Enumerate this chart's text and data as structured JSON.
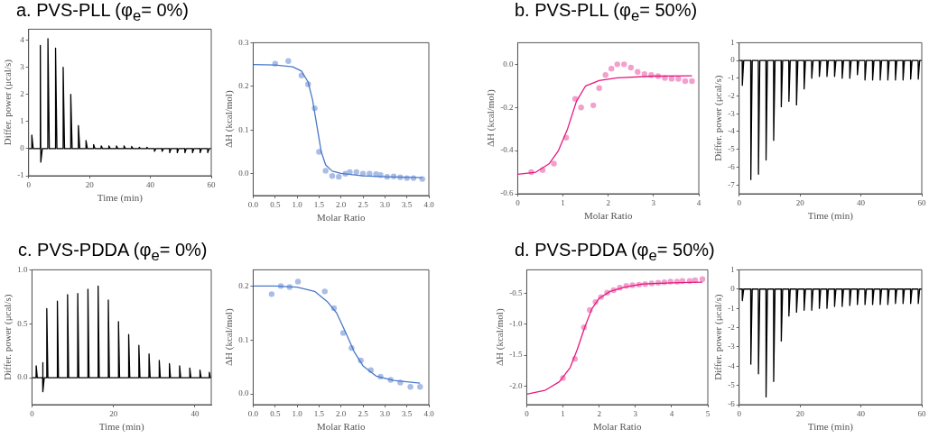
{
  "chart_data": [
    {
      "type": "line",
      "title": "a. PVS-PLL (φ$_{e}$= 0%)",
      "xlabel": "Time (min)",
      "ylabel": "Differ. power (μcal/s)",
      "xlim": [
        0,
        60
      ],
      "xticks": [
        0,
        20,
        40,
        60
      ],
      "ylim": [
        -1,
        4.4
      ],
      "yticks": [
        -1,
        0,
        1,
        2,
        3,
        4
      ],
      "marker": "none",
      "series": [
        {
          "color": "#000000",
          "x": [
            0,
            1,
            1.05,
            1.5,
            3.8,
            3.85,
            4.0,
            4.5,
            6.3,
            6.35,
            6.8,
            8.8,
            8.85,
            9.3,
            11.3,
            11.35,
            11.8,
            13.8,
            13.85,
            14.3,
            16.3,
            16.35,
            16.8,
            18.8,
            18.85,
            19.3,
            21.3,
            21.35,
            21.8,
            23.8,
            23.85,
            24.3,
            26.3,
            26.35,
            26.8,
            28.8,
            28.85,
            29.3,
            31.3,
            31.35,
            31.8,
            33.8,
            33.85,
            34.3,
            36.3,
            36.35,
            36.8,
            38.8,
            38.85,
            39.3,
            41.3,
            41.35,
            41.8,
            43.8,
            43.85,
            44.3,
            46.3,
            46.35,
            46.8,
            48.8,
            48.85,
            49.3,
            51.3,
            51.35,
            51.8,
            53.8,
            53.85,
            54.3,
            56.3,
            56.35,
            56.8,
            58.8,
            58.85,
            59.3,
            60
          ],
          "values": [
            0,
            0,
            0.5,
            0,
            0,
            3.8,
            -0.5,
            0,
            0,
            4.05,
            0,
            0,
            3.7,
            0,
            0,
            3.0,
            0,
            0,
            2.0,
            0,
            0,
            0.85,
            0,
            0,
            0.3,
            0,
            0,
            0.15,
            0,
            0,
            0.1,
            0,
            0,
            0.1,
            0,
            0,
            0.1,
            0,
            0,
            0.1,
            0,
            0,
            0.08,
            0,
            0,
            0.05,
            0,
            0,
            0.05,
            0,
            0,
            -0.1,
            0,
            0,
            -0.1,
            0,
            0,
            -0.15,
            0,
            0,
            -0.15,
            0,
            0,
            -0.15,
            0,
            0,
            -0.15,
            0,
            0,
            -0.15,
            0,
            0,
            -0.15,
            0,
            0
          ]
        }
      ]
    },
    {
      "type": "scatter",
      "xlabel": "Molar Ratio",
      "ylabel": "ΔH (kcal/mol)",
      "xlim": [
        0,
        4
      ],
      "xticks": [
        {
          "value": 0,
          "label": "0.0"
        },
        0.5,
        {
          "value": 1,
          "label": "1.0"
        },
        1.5,
        {
          "value": 2,
          "label": "2.0"
        },
        2.5,
        {
          "value": 3,
          "label": "3.0"
        },
        3.5,
        {
          "value": 4,
          "label": "4.0"
        }
      ],
      "ylim": [
        -0.05,
        0.3
      ],
      "yticks": [
        {
          "value": 0,
          "label": "0.0"
        },
        0.1,
        0.2,
        0.3
      ],
      "series": [
        {
          "type": "scatter",
          "marker": "circle",
          "color": "#a9bde6",
          "x": [
            0.5,
            0.8,
            1.1,
            1.25,
            1.4,
            1.5,
            1.65,
            1.8,
            1.95,
            2.1,
            2.2,
            2.35,
            2.5,
            2.65,
            2.8,
            2.9,
            3.05,
            3.2,
            3.35,
            3.5,
            3.65,
            3.8,
            3.85
          ],
          "values": [
            0.252,
            0.258,
            0.225,
            0.205,
            0.15,
            0.05,
            0.007,
            -0.005,
            -0.007,
            0,
            0.004,
            0.004,
            0,
            0,
            -0.001,
            -0.003,
            -0.007,
            -0.006,
            -0.008,
            -0.01,
            -0.01,
            null,
            -0.012
          ]
        },
        {
          "type": "line",
          "marker": "none",
          "color": "#4a78c9",
          "x": [
            0,
            0.5,
            0.9,
            1.1,
            1.25,
            1.35,
            1.45,
            1.55,
            1.65,
            1.8,
            2,
            2.5,
            3,
            3.85
          ],
          "values": [
            0.25,
            0.249,
            0.245,
            0.235,
            0.21,
            0.17,
            0.11,
            0.05,
            0.02,
            0.006,
            0.001,
            -0.005,
            -0.007,
            -0.009
          ]
        }
      ]
    },
    {
      "type": "scatter",
      "title": "b. PVS-PLL (φ$_{e}$= 50%)",
      "xlabel": "Molar Ratio",
      "ylabel": "ΔH (kcal/mol)",
      "xlim": [
        0,
        4
      ],
      "xticks": [
        0,
        1,
        2,
        3,
        4
      ],
      "ylim": [
        -0.6,
        0.1
      ],
      "yticks": [
        -0.6,
        -0.4,
        -0.2,
        {
          "value": 0,
          "label": "0.0"
        }
      ],
      "series": [
        {
          "type": "scatter",
          "marker": "circle",
          "color": "#f3a0cd",
          "x": [
            0.3,
            0.55,
            0.8,
            1.07,
            1.27,
            1.4,
            1.67,
            1.8,
            1.94,
            2.07,
            2.2,
            2.35,
            2.5,
            2.65,
            2.8,
            2.95,
            3.1,
            3.25,
            3.4,
            3.55,
            3.7,
            3.82,
            3.85
          ],
          "values": [
            -0.5,
            -0.49,
            -0.46,
            -0.34,
            -0.16,
            -0.2,
            -0.19,
            -0.11,
            -0.05,
            -0.02,
            0,
            0,
            -0.015,
            -0.035,
            -0.045,
            -0.05,
            -0.055,
            -0.063,
            -0.067,
            -0.068,
            -0.078,
            null,
            -0.078
          ]
        },
        {
          "type": "line",
          "marker": "none",
          "color": "#e5197f",
          "x": [
            0,
            0.4,
            0.7,
            0.9,
            1.1,
            1.3,
            1.5,
            1.8,
            2.2,
            3,
            3.85
          ],
          "values": [
            -0.51,
            -0.5,
            -0.46,
            -0.4,
            -0.3,
            -0.17,
            -0.1,
            -0.075,
            -0.063,
            -0.055,
            -0.053
          ]
        }
      ]
    },
    {
      "type": "line",
      "xlabel": "Time (min)",
      "ylabel": "Differ. power (μcal/s)",
      "xlim": [
        0,
        60
      ],
      "xticks": [
        0,
        20,
        40,
        60
      ],
      "ylim": [
        -7.5,
        1
      ],
      "yticks": [
        -7,
        -6,
        -5,
        -4,
        -3,
        -2,
        -1,
        0,
        1
      ],
      "marker": "none",
      "series": [
        {
          "color": "#000000",
          "x": [
            0,
            1,
            1.05,
            1.5,
            3.8,
            3.85,
            4.3,
            6.3,
            6.35,
            6.8,
            8.8,
            8.85,
            9.3,
            11.3,
            11.35,
            11.8,
            13.8,
            13.85,
            14.3,
            16.3,
            16.35,
            16.8,
            18.8,
            18.85,
            19.3,
            21.3,
            21.35,
            21.8,
            23.8,
            23.85,
            24.3,
            26.3,
            26.35,
            26.8,
            28.8,
            28.85,
            29.3,
            31.3,
            31.35,
            31.8,
            33.8,
            33.85,
            34.3,
            36.3,
            36.35,
            36.8,
            38.8,
            38.85,
            39.3,
            41.3,
            41.35,
            41.8,
            43.8,
            43.85,
            44.3,
            46.3,
            46.35,
            46.8,
            48.8,
            48.85,
            49.3,
            51.3,
            51.35,
            51.8,
            53.8,
            53.85,
            54.3,
            56.3,
            56.35,
            56.8,
            58.8,
            58.85,
            59.3,
            60
          ],
          "values": [
            0,
            0,
            -1.4,
            0,
            0,
            -6.7,
            0,
            0,
            -6.4,
            0,
            0,
            -5.6,
            0,
            0,
            -4.5,
            0,
            0,
            -2.6,
            0,
            0,
            -2.3,
            0,
            0,
            -2.5,
            0,
            0,
            -1.6,
            0,
            0,
            -1.0,
            0,
            0,
            -0.9,
            0,
            0,
            -0.9,
            0,
            0,
            -0.9,
            0,
            0,
            -1.0,
            0,
            0,
            -1.0,
            0,
            0,
            -0.8,
            0,
            0,
            -1.1,
            0,
            0,
            -1.1,
            0,
            0,
            -1.1,
            0,
            0,
            -1.1,
            0,
            0,
            -1.1,
            0,
            0,
            -1.1,
            0,
            0,
            -1.05,
            0,
            0,
            -1.05,
            0,
            0
          ]
        }
      ]
    },
    {
      "type": "line",
      "title": "c. PVS-PDDA (φ$_{e}$= 0%)",
      "xlabel": "Time (min)",
      "ylabel": "Differ. power (μcal/s)",
      "xlim": [
        0,
        44
      ],
      "xticks": [
        0,
        20,
        40
      ],
      "ylim": [
        -0.25,
        1
      ],
      "yticks": [
        {
          "value": 0,
          "label": "0.0"
        },
        0.5,
        {
          "value": 1,
          "label": "1.0"
        }
      ],
      "marker": "none",
      "series": [
        {
          "color": "#000000",
          "x": [
            0,
            1,
            1.03,
            1.3,
            2.6,
            2.63,
            2.7,
            3.0,
            3.6,
            3.63,
            3.9,
            6.2,
            6.23,
            6.5,
            8.7,
            8.73,
            9.0,
            11.2,
            11.23,
            11.5,
            13.7,
            13.73,
            14.0,
            16.2,
            16.23,
            16.5,
            18.7,
            18.73,
            19.0,
            21.2,
            21.23,
            21.5,
            23.7,
            23.73,
            24.0,
            26.2,
            26.23,
            26.5,
            28.7,
            28.73,
            29.0,
            31.2,
            31.23,
            31.5,
            33.7,
            33.73,
            34.0,
            36.2,
            36.23,
            36.5,
            38.7,
            38.73,
            39.0,
            41.2,
            41.23,
            41.5,
            43.5,
            43.53,
            43.8,
            44
          ],
          "values": [
            0,
            0,
            0.11,
            0,
            0,
            0.14,
            -0.13,
            0,
            0,
            0.64,
            0,
            0,
            0.71,
            0,
            0,
            0.77,
            0,
            0,
            0.78,
            0,
            0,
            0.82,
            0,
            0,
            0.85,
            0,
            0,
            0.72,
            0,
            0,
            0.52,
            0,
            0,
            0.4,
            0,
            0,
            0.3,
            0,
            0,
            0.22,
            0,
            0,
            0.16,
            0,
            0,
            0.13,
            0,
            0,
            0.11,
            0,
            0,
            0.09,
            0,
            0,
            0.07,
            0,
            0,
            0.05,
            0,
            0
          ]
        }
      ]
    },
    {
      "type": "scatter",
      "xlabel": "Molar Ratio",
      "ylabel": "ΔH (kcal/mol)",
      "xlim": [
        0,
        4
      ],
      "xticks": [
        {
          "value": 0,
          "label": "0.0"
        },
        0.5,
        {
          "value": 1,
          "label": "1.0"
        },
        1.5,
        {
          "value": 2,
          "label": "2.0"
        },
        2.5,
        {
          "value": 3,
          "label": "3.0"
        },
        3.5,
        {
          "value": 4,
          "label": "4.0"
        }
      ],
      "ylim": [
        -0.02,
        0.23
      ],
      "yticks": [
        {
          "value": 0,
          "label": "0.0"
        },
        0.1,
        0.2
      ],
      "series": [
        {
          "type": "scatter",
          "marker": "circle",
          "color": "#a9bde6",
          "x": [
            0.42,
            0.63,
            0.83,
            1.02,
            1.63,
            1.84,
            2.05,
            2.24,
            2.45,
            2.68,
            2.9,
            3.13,
            3.35,
            3.58,
            3.8
          ],
          "values": [
            0.185,
            0.2,
            0.198,
            0.208,
            0.19,
            0.159,
            0.113,
            0.085,
            0.062,
            0.044,
            0.032,
            0.026,
            0.021,
            0.013,
            0.013
          ]
        },
        {
          "type": "line",
          "marker": "none",
          "color": "#4a78c9",
          "x": [
            0,
            0.5,
            1,
            1.4,
            1.7,
            1.9,
            2.1,
            2.3,
            2.5,
            2.8,
            3.2,
            3.8
          ],
          "values": [
            0.2,
            0.2,
            0.198,
            0.19,
            0.17,
            0.15,
            0.115,
            0.078,
            0.052,
            0.033,
            0.025,
            0.02
          ]
        }
      ]
    },
    {
      "type": "scatter",
      "title": "d. PVS-PDDA (φ$_{e}$= 50%)",
      "xlabel": "Molar Ratio",
      "ylabel": "ΔH (kcal/mol)",
      "xlim": [
        0,
        5
      ],
      "xticks": [
        0,
        1,
        2,
        3,
        4,
        5
      ],
      "ylim": [
        -2.3,
        -0.12
      ],
      "yticks": [
        {
          "value": -2,
          "label": "-2.0"
        },
        -1.5,
        {
          "value": -1,
          "label": "-1.0"
        },
        -0.5
      ],
      "series": [
        {
          "type": "scatter",
          "marker": "circle",
          "color": "#f3a0cd",
          "x": [
            1.0,
            1.33,
            1.58,
            1.74,
            1.9,
            2.05,
            2.22,
            2.4,
            2.57,
            2.75,
            2.92,
            3.1,
            3.27,
            3.45,
            3.63,
            3.8,
            3.97,
            4.15,
            4.3,
            4.5,
            4.65,
            4.8,
            4.85
          ],
          "values": [
            -1.87,
            -1.56,
            -1.05,
            -0.77,
            -0.64,
            -0.56,
            -0.49,
            -0.45,
            -0.41,
            -0.38,
            -0.37,
            -0.36,
            -0.35,
            -0.34,
            -0.33,
            -0.32,
            -0.31,
            -0.31,
            -0.3,
            -0.3,
            -0.29,
            null,
            -0.27
          ]
        },
        {
          "type": "line",
          "marker": "none",
          "color": "#e5197f",
          "x": [
            0,
            0.5,
            0.9,
            1.2,
            1.4,
            1.6,
            1.8,
            2,
            2.3,
            2.7,
            3.2,
            4,
            4.85
          ],
          "values": [
            -2.13,
            -2.07,
            -1.93,
            -1.7,
            -1.4,
            -1.05,
            -0.75,
            -0.58,
            -0.47,
            -0.4,
            -0.35,
            -0.33,
            -0.32
          ]
        }
      ]
    },
    {
      "type": "line",
      "xlabel": "Time (min)",
      "ylabel": "Differ. power (μcal/s)",
      "xlim": [
        0,
        60
      ],
      "xticks": [
        0,
        20,
        40,
        60
      ],
      "ylim": [
        -6,
        1
      ],
      "yticks": [
        -6,
        -5,
        -4,
        -3,
        -2,
        -1,
        0,
        1
      ],
      "marker": "none",
      "series": [
        {
          "color": "#000000",
          "x": [
            0,
            1,
            1.05,
            1.5,
            3.8,
            3.85,
            4.3,
            6.3,
            6.35,
            6.8,
            8.8,
            8.85,
            9.3,
            11.3,
            11.35,
            11.8,
            13.8,
            13.85,
            14.3,
            16.3,
            16.35,
            16.8,
            18.8,
            18.85,
            19.3,
            21.3,
            21.35,
            21.8,
            23.8,
            23.85,
            24.3,
            26.3,
            26.35,
            26.8,
            28.8,
            28.85,
            29.3,
            31.3,
            31.35,
            31.8,
            33.8,
            33.85,
            34.3,
            36.3,
            36.35,
            36.8,
            38.8,
            38.85,
            39.3,
            41.3,
            41.35,
            41.8,
            43.8,
            43.85,
            44.3,
            46.3,
            46.35,
            46.8,
            48.8,
            48.85,
            49.3,
            51.3,
            51.35,
            51.8,
            53.8,
            53.85,
            54.3,
            56.3,
            56.35,
            56.8,
            58.8,
            58.85,
            59.3,
            60
          ],
          "values": [
            0,
            0,
            -0.6,
            0,
            0,
            -3.9,
            0,
            0,
            -4.4,
            0,
            0,
            -5.6,
            0,
            0,
            -4.8,
            0,
            0,
            -2.7,
            0,
            0,
            -1.4,
            0,
            0,
            -1.2,
            0,
            0,
            -1.1,
            0,
            0,
            -1.1,
            0,
            0,
            -1.0,
            0,
            0,
            -1.0,
            0,
            0,
            -0.9,
            0,
            0,
            -0.9,
            0,
            0,
            -0.85,
            0,
            0,
            -0.8,
            0,
            0,
            -0.8,
            0,
            0,
            -0.8,
            0,
            0,
            -0.8,
            0,
            0,
            -0.8,
            0,
            0,
            -0.75,
            0,
            0,
            -0.75,
            0,
            0,
            -0.75,
            0,
            0,
            -0.75,
            0,
            0
          ]
        }
      ]
    }
  ]
}
